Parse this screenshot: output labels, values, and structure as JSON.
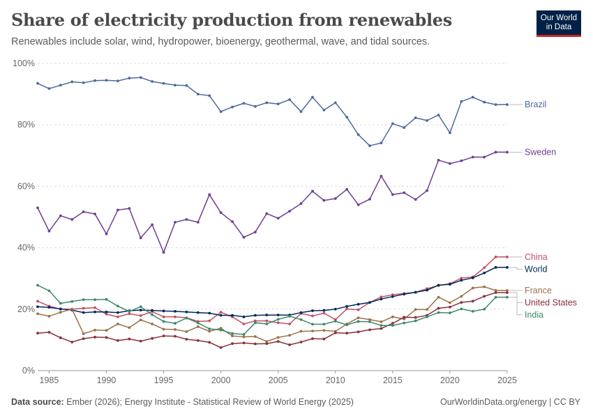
{
  "header": {
    "title": "Share of electricity production from renewables",
    "subtitle": "Renewables include solar, wind, hydropower, bioenergy, geothermal, wave, and tidal sources."
  },
  "logo": {
    "line1": "Our World",
    "line2": "in Data",
    "background": "#002147",
    "accent": "#ce261e"
  },
  "footer": {
    "source_label": "Data source:",
    "source_text": "Ember (2026); Energy Institute - Statistical Review of World Energy (2025)",
    "right_text": "OurWorldinData.org/energy | CC BY"
  },
  "chart_data": {
    "type": "line",
    "title": "Share of electricity production from renewables",
    "xlabel": "",
    "ylabel": "",
    "xlim": [
      1984,
      2025
    ],
    "ylim": [
      0,
      100
    ],
    "y_ticks": [
      "0%",
      "20%",
      "40%",
      "60%",
      "80%",
      "100%"
    ],
    "x_ticks": [
      "1985",
      "1990",
      "1995",
      "2000",
      "2005",
      "2010",
      "2015",
      "2020",
      "2025"
    ],
    "grid": "horizontal-dashed",
    "legend": "right-end-labels",
    "x": [
      1984,
      1985,
      1986,
      1987,
      1988,
      1989,
      1990,
      1991,
      1992,
      1993,
      1994,
      1995,
      1996,
      1997,
      1998,
      1999,
      2000,
      2001,
      2002,
      2003,
      2004,
      2005,
      2006,
      2007,
      2008,
      2009,
      2010,
      2011,
      2012,
      2013,
      2014,
      2015,
      2016,
      2017,
      2018,
      2019,
      2020,
      2021,
      2022,
      2023,
      2024,
      2025
    ],
    "series": [
      {
        "name": "Brazil",
        "color": "#4c6a9c",
        "values": [
          93.5,
          91.8,
          92.9,
          94.0,
          93.7,
          94.4,
          94.5,
          94.3,
          95.2,
          95.4,
          94.1,
          93.5,
          92.9,
          92.8,
          90.0,
          89.5,
          84.3,
          85.8,
          87.0,
          86.0,
          87.2,
          86.8,
          88.2,
          84.3,
          89.0,
          84.8,
          87.2,
          82.5,
          76.8,
          73.2,
          74.1,
          80.4,
          79.1,
          82.3,
          81.4,
          83.2,
          77.4,
          87.6,
          89.0,
          87.4,
          86.6,
          86.6
        ]
      },
      {
        "name": "Sweden",
        "color": "#6d3e91",
        "values": [
          53.0,
          45.4,
          50.4,
          49.2,
          51.7,
          51.0,
          44.5,
          52.3,
          52.8,
          43.2,
          47.5,
          38.5,
          48.3,
          49.2,
          48.3,
          57.3,
          51.4,
          48.5,
          43.4,
          45.1,
          51.1,
          49.6,
          51.9,
          54.4,
          58.4,
          55.4,
          56.0,
          59.0,
          54.0,
          55.8,
          63.3,
          57.3,
          57.9,
          55.7,
          58.6,
          68.5,
          67.4,
          68.3,
          69.5,
          69.5,
          71.1,
          71.1
        ]
      },
      {
        "name": "China",
        "color": "#c15065",
        "values": [
          22.6,
          21.0,
          20.0,
          20.0,
          20.3,
          20.5,
          18.4,
          17.5,
          18.5,
          17.9,
          19.2,
          17.5,
          17.5,
          17.2,
          16.0,
          16.2,
          19.0,
          17.5,
          15.2,
          16.2,
          16.2,
          15.6,
          15.2,
          18.6,
          17.8,
          18.7,
          16.6,
          20.1,
          19.8,
          22.2,
          24.0,
          24.7,
          25.1,
          25.5,
          26.7,
          27.7,
          28.3,
          30.1,
          30.5,
          33.5,
          37.0,
          37.0
        ]
      },
      {
        "name": "World",
        "color": "#00295b",
        "values": [
          20.8,
          20.6,
          20.1,
          19.7,
          18.9,
          19.1,
          19.1,
          18.9,
          19.5,
          19.7,
          19.6,
          19.4,
          19.3,
          19.1,
          18.9,
          18.7,
          18.0,
          18.0,
          17.5,
          18.0,
          18.1,
          18.1,
          18.1,
          18.9,
          19.5,
          19.6,
          20.0,
          20.9,
          21.6,
          22.2,
          23.3,
          24.1,
          24.9,
          25.5,
          26.2,
          27.8,
          28.1,
          29.4,
          30.2,
          31.8,
          33.6,
          33.6
        ]
      },
      {
        "name": "France",
        "color": "#9a7148",
        "values": [
          18.5,
          17.7,
          19.0,
          20.0,
          12.0,
          13.2,
          13.1,
          15.2,
          14.0,
          16.5,
          15.2,
          13.5,
          13.4,
          12.7,
          14.3,
          12.8,
          13.8,
          11.3,
          11.0,
          11.1,
          9.5,
          10.8,
          11.5,
          12.8,
          12.9,
          13.1,
          12.8,
          15.2,
          17.2,
          16.6,
          15.9,
          17.5,
          16.8,
          19.9,
          19.9,
          23.9,
          22.1,
          24.2,
          26.9,
          27.3,
          26.1,
          26.1
        ]
      },
      {
        "name": "United States",
        "color": "#883039",
        "values": [
          12.2,
          12.5,
          10.7,
          9.3,
          10.4,
          10.9,
          10.8,
          9.8,
          10.3,
          9.6,
          10.5,
          11.3,
          11.2,
          10.2,
          9.8,
          9.2,
          7.5,
          8.8,
          9.0,
          8.7,
          8.8,
          9.5,
          8.4,
          9.3,
          10.4,
          10.3,
          12.3,
          12.2,
          12.6,
          13.3,
          13.7,
          15.4,
          17.4,
          17.3,
          18.0,
          20.3,
          20.7,
          22.2,
          22.6,
          24.2,
          25.4,
          25.4
        ]
      },
      {
        "name": "India",
        "color": "#3c8a6a",
        "values": [
          27.8,
          26.0,
          21.9,
          22.5,
          23.1,
          23.1,
          23.2,
          21.0,
          19.3,
          20.8,
          18.2,
          16.0,
          15.4,
          17.1,
          15.5,
          13.6,
          13.2,
          12.1,
          11.8,
          15.6,
          15.2,
          16.7,
          17.7,
          16.6,
          15.1,
          15.1,
          16.1,
          14.9,
          16.0,
          15.9,
          14.7,
          14.7,
          15.5,
          16.2,
          17.5,
          18.9,
          18.8,
          20.1,
          19.3,
          20.0,
          23.9,
          23.9
        ]
      }
    ]
  }
}
